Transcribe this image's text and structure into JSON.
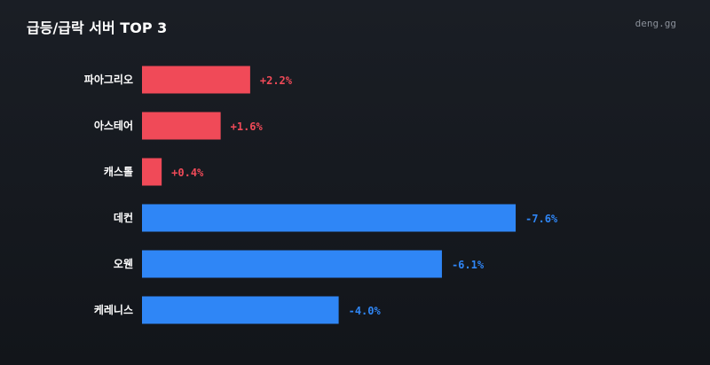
{
  "header": {
    "title": "급등/급락 서버 TOP 3",
    "brand": "deng.gg"
  },
  "colors": {
    "positive": "#f04a58",
    "negative": "#2f86f6",
    "text": "#ffffff",
    "background": "#15181d"
  },
  "chart_data": {
    "type": "bar",
    "orientation": "horizontal",
    "title": "급등/급락 서버 TOP 3",
    "xlabel": "",
    "ylabel": "",
    "categories": [
      "파아그리오",
      "아스테어",
      "캐스톨",
      "데컨",
      "오웬",
      "케레니스"
    ],
    "values": [
      2.2,
      1.6,
      0.4,
      -7.6,
      -6.1,
      -4.0
    ],
    "value_labels": [
      "+2.2%",
      "+1.6%",
      "+0.4%",
      "-7.6%",
      "-6.1%",
      "-4.0%"
    ],
    "grid": false,
    "legend": "none"
  }
}
